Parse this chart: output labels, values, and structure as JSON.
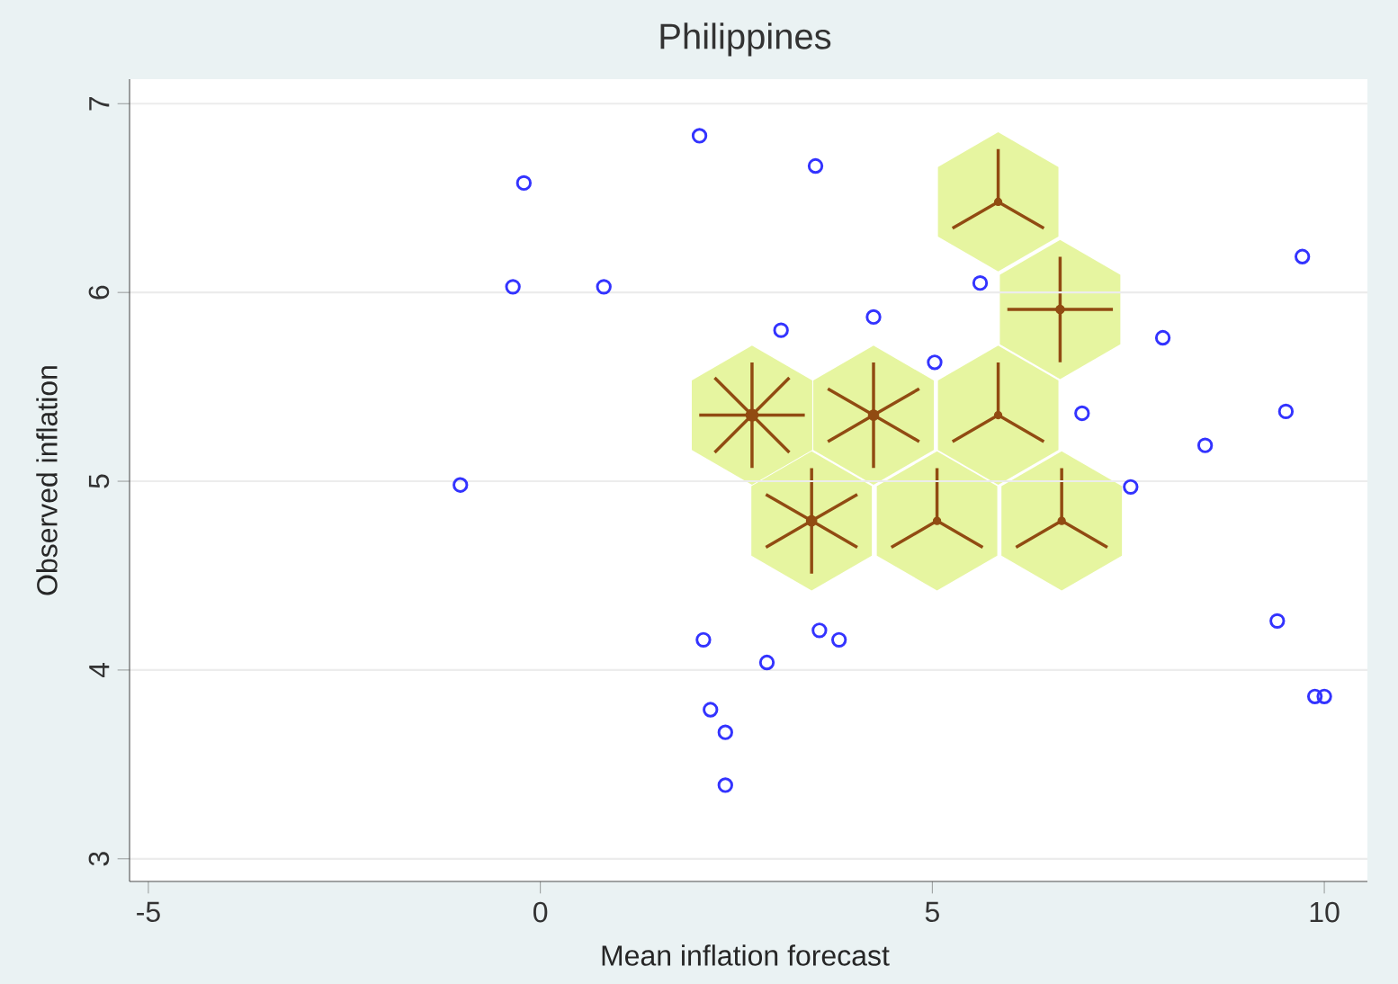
{
  "chart_data": {
    "type": "scatter",
    "title": "Philippines",
    "xlabel": "Mean inflation forecast",
    "ylabel": "Observed inflation",
    "xlim": [
      -5.24,
      10.55
    ],
    "ylim": [
      2.88,
      7.13
    ],
    "xticks": [
      -5,
      0,
      5,
      10
    ],
    "yticks": [
      3,
      4,
      5,
      6,
      7
    ],
    "grid": "y",
    "marker": "circle",
    "series": [
      {
        "color": "#3333ff",
        "x": [
          -1.02,
          -0.35,
          -0.21,
          0.81,
          2.03,
          3.51,
          3.07,
          4.25,
          5.03,
          5.61,
          6.91,
          7.53,
          7.94,
          8.48,
          9.72,
          9.51,
          9.4,
          9.88,
          10.0,
          2.08,
          2.89,
          3.56,
          3.81,
          2.17,
          2.36,
          2.36
        ],
        "values": [
          4.98,
          6.03,
          6.58,
          6.03,
          6.83,
          6.67,
          5.8,
          5.87,
          5.63,
          6.05,
          5.36,
          4.97,
          5.76,
          5.19,
          6.19,
          5.37,
          4.26,
          3.86,
          3.86,
          4.16,
          4.04,
          4.21,
          4.16,
          3.79,
          3.67,
          3.39
        ]
      },
      {
        "type": "bubble",
        "color": "#914b12",
        "x": [
          5.84,
          6.63,
          2.7,
          4.25,
          5.84,
          3.46,
          5.06,
          6.65
        ],
        "values": [
          6.48,
          5.91,
          5.35,
          5.35,
          5.35,
          4.79,
          4.79,
          4.79
        ],
        "sizes": [
          0.375,
          0.5,
          1,
          0.75,
          0.375,
          0.75,
          0.375,
          0.375
        ]
      }
    ]
  }
}
